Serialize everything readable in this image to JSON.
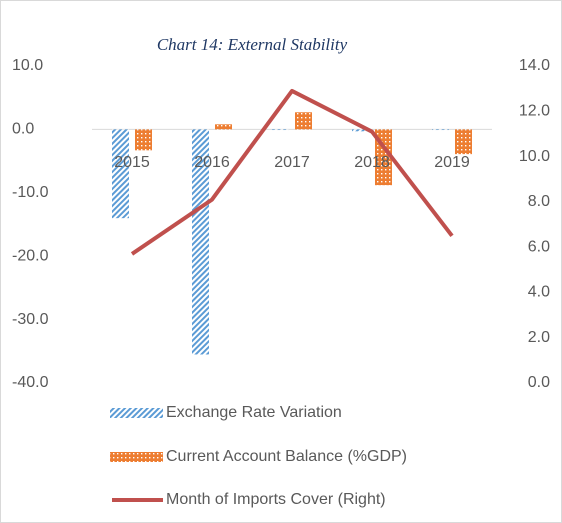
{
  "chart_data": {
    "type": "bar-line",
    "title": "Chart 14: External Stability",
    "categories": [
      "2015",
      "2016",
      "2017",
      "2018",
      "2019"
    ],
    "series": [
      {
        "name": "Exchange Rate Variation",
        "color": "#5b9bd5",
        "type": "bar",
        "axis": "y",
        "values": [
          -14.0,
          -35.5,
          -0.1,
          -0.3,
          -0.1
        ]
      },
      {
        "name": "Current Account Balance (%GDP)",
        "color": "#ed7d31",
        "type": "bar",
        "axis": "y",
        "values": [
          -3.3,
          0.8,
          2.7,
          -8.8,
          -3.9
        ]
      },
      {
        "name": "Month of Imports Cover (Right)",
        "color": "#c0504d",
        "type": "line",
        "axis": "y2",
        "values": [
          5.7,
          8.1,
          12.9,
          11.1,
          6.5
        ]
      }
    ],
    "ylim": [
      -40,
      10
    ],
    "yticks": [
      {
        "value": -40,
        "label": "-40.0"
      },
      {
        "value": -30,
        "label": "-30.0"
      },
      {
        "value": -20,
        "label": "-20.0"
      },
      {
        "value": -10,
        "label": "-10.0"
      },
      {
        "value": 0,
        "label": "0.0"
      },
      {
        "value": 10,
        "label": "10.0"
      }
    ],
    "y2lim": [
      0,
      14
    ],
    "y2ticks": [
      {
        "value": 0,
        "label": "0.0"
      },
      {
        "value": 2,
        "label": "2.0"
      },
      {
        "value": 4,
        "label": "4.0"
      },
      {
        "value": 6,
        "label": "6.0"
      },
      {
        "value": 8,
        "label": "8.0"
      },
      {
        "value": 10,
        "label": "10.0"
      },
      {
        "value": 12,
        "label": "12.0"
      },
      {
        "value": 14,
        "label": "14.0"
      }
    ]
  }
}
